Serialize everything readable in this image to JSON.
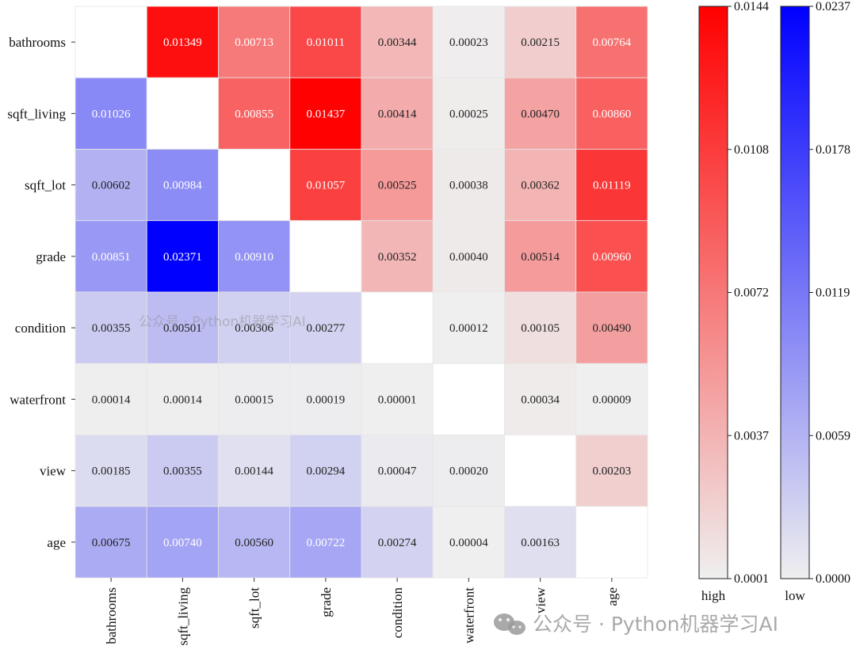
{
  "chart_data": {
    "type": "heatmap",
    "variables": [
      "bathrooms",
      "sqft_living",
      "sqft_lot",
      "grade",
      "condition",
      "waterfront",
      "view",
      "age"
    ],
    "upper_scale_label": "high",
    "lower_scale_label": "low",
    "matrix": [
      [
        null,
        "0.01349",
        "0.00713",
        "0.01011",
        "0.00344",
        "0.00023",
        "0.00215",
        "0.00764"
      ],
      [
        "0.01026",
        null,
        "0.00855",
        "0.01437",
        "0.00414",
        "0.00025",
        "0.00470",
        "0.00860"
      ],
      [
        "0.00602",
        "0.00984",
        null,
        "0.01057",
        "0.00525",
        "0.00038",
        "0.00362",
        "0.01119"
      ],
      [
        "0.00851",
        "0.02371",
        "0.00910",
        null,
        "0.00352",
        "0.00040",
        "0.00514",
        "0.00960"
      ],
      [
        "0.00355",
        "0.00501",
        "0.00306",
        "0.00277",
        null,
        "0.00012",
        "0.00105",
        "0.00490"
      ],
      [
        "0.00014",
        "0.00014",
        "0.00015",
        "0.00019",
        "0.00001",
        null,
        "0.00034",
        "0.00009"
      ],
      [
        "0.00185",
        "0.00355",
        "0.00144",
        "0.00294",
        "0.00047",
        "0.00020",
        null,
        "0.00203"
      ],
      [
        "0.00675",
        "0.00740",
        "0.00560",
        "0.00722",
        "0.00274",
        "0.00004",
        "0.00163",
        null
      ]
    ],
    "colorbar_high": {
      "min": 0.0001,
      "max": 0.0144,
      "ticks": [
        "0.0144",
        "0.0108",
        "0.0072",
        "0.0037",
        "0.0001"
      ],
      "color_low": "#efefef",
      "color_high": "#ff0000",
      "label": "high",
      "label_color": "#8b0000"
    },
    "colorbar_low": {
      "min": 0.0,
      "max": 0.0237,
      "ticks": [
        "0.0237",
        "0.0178",
        "0.0119",
        "0.0059",
        "0.0000"
      ],
      "color_low": "#efefef",
      "color_high": "#0000ff",
      "label": "low",
      "label_color": "#00008b"
    }
  },
  "watermarks": {
    "center": "公众号 · Python机器学习AI",
    "bottom_right": "公众号 · Python机器学习AI"
  }
}
